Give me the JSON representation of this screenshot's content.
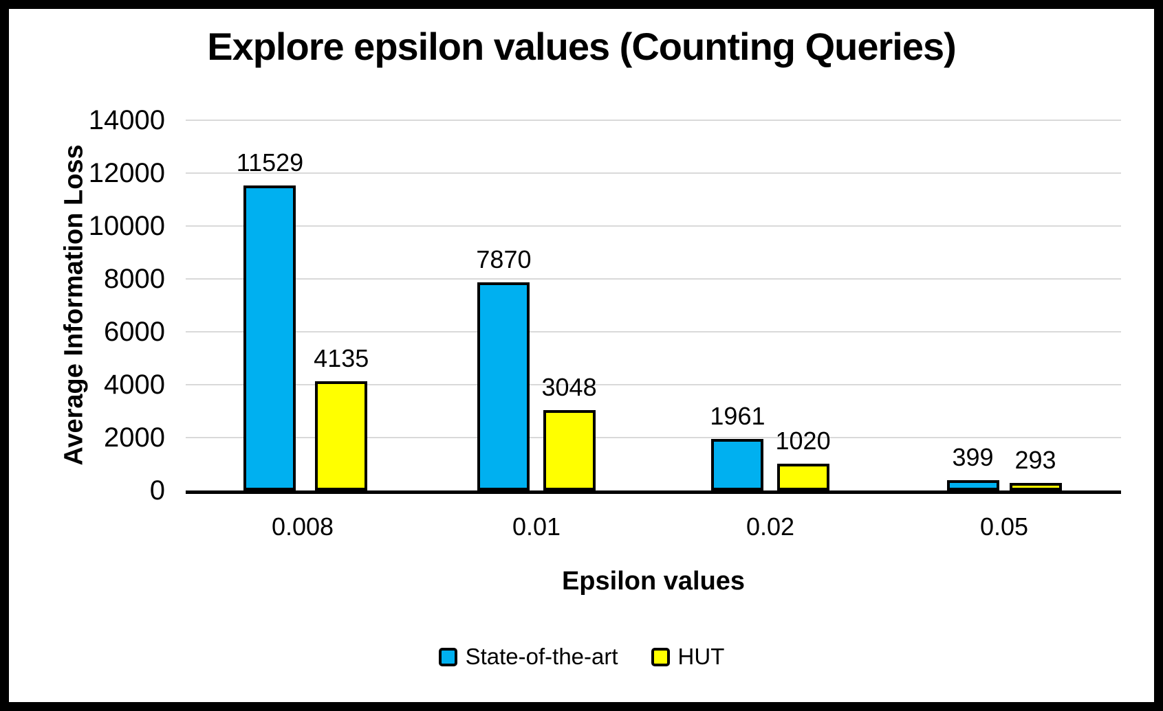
{
  "chart_data": {
    "type": "bar",
    "title": "Explore epsilon values (Counting Queries)",
    "xlabel": "Epsilon values",
    "ylabel": "Average Information Loss",
    "categories": [
      "0.008",
      "0.01",
      "0.02",
      "0.05"
    ],
    "series": [
      {
        "name": "State-of-the-art",
        "color": "#00B0F0",
        "values": [
          11529,
          7870,
          1961,
          399
        ]
      },
      {
        "name": "HUT",
        "color": "#FFFF00",
        "values": [
          4135,
          3048,
          1020,
          293
        ]
      }
    ],
    "ylim": [
      0,
      14000
    ],
    "ytick_step": 2000,
    "grid": true,
    "legend_position": "bottom",
    "colors": {
      "bar_outline": "#000000",
      "gridline": "#d9d9d9",
      "axis_line": "#000000",
      "text": "#000000",
      "frame_border": "#000000",
      "background": "#ffffff"
    }
  }
}
